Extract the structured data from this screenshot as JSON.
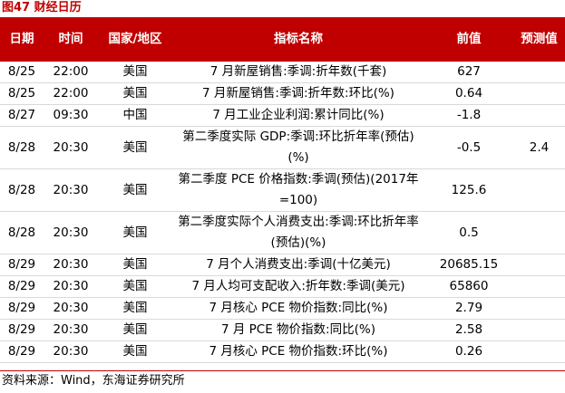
{
  "figure_title": "图47  财经日历",
  "header": {
    "date": "日期",
    "time": "时间",
    "region": "国家/地区",
    "indicator": "指标名称",
    "previous": "前值",
    "forecast": "预测值"
  },
  "rows": [
    {
      "date": "8/25",
      "time": "22:00",
      "region": "美国",
      "indicator": "7 月新屋销售:季调:折年数(千套)",
      "previous": "627",
      "forecast": ""
    },
    {
      "date": "8/25",
      "time": "22:00",
      "region": "美国",
      "indicator": "7 月新屋销售:季调:折年数:环比(%)",
      "previous": "0.64",
      "forecast": ""
    },
    {
      "date": "8/27",
      "time": "09:30",
      "region": "中国",
      "indicator": "7 月工业企业利润:累计同比(%)",
      "previous": "-1.8",
      "forecast": ""
    },
    {
      "date": "8/28",
      "time": "20:30",
      "region": "美国",
      "indicator": "第二季度实际 GDP:季调:环比折年率(预估)(%)",
      "previous": "-0.5",
      "forecast": "2.4"
    },
    {
      "date": "8/28",
      "time": "20:30",
      "region": "美国",
      "indicator": "第二季度 PCE 价格指数:季调(预估)(2017年=100)",
      "previous": "125.6",
      "forecast": ""
    },
    {
      "date": "8/28",
      "time": "20:30",
      "region": "美国",
      "indicator": "第二季度实际个人消费支出:季调:环比折年率(预估)(%)",
      "previous": "0.5",
      "forecast": ""
    },
    {
      "date": "8/29",
      "time": "20:30",
      "region": "美国",
      "indicator": "7 月个人消费支出:季调(十亿美元)",
      "previous": "20685.15",
      "forecast": ""
    },
    {
      "date": "8/29",
      "time": "20:30",
      "region": "美国",
      "indicator": "7 月人均可支配收入:折年数:季调(美元)",
      "previous": "65860",
      "forecast": ""
    },
    {
      "date": "8/29",
      "time": "20:30",
      "region": "美国",
      "indicator": "7 月核心 PCE 物价指数:同比(%)",
      "previous": "2.79",
      "forecast": ""
    },
    {
      "date": "8/29",
      "time": "20:30",
      "region": "美国",
      "indicator": "7 月 PCE 物价指数:同比(%)",
      "previous": "2.58",
      "forecast": ""
    },
    {
      "date": "8/29",
      "time": "20:30",
      "region": "美国",
      "indicator": "7 月核心 PCE 物价指数:环比(%)",
      "previous": "0.26",
      "forecast": ""
    }
  ],
  "source_note": "资料来源：Wind，东海证券研究所"
}
